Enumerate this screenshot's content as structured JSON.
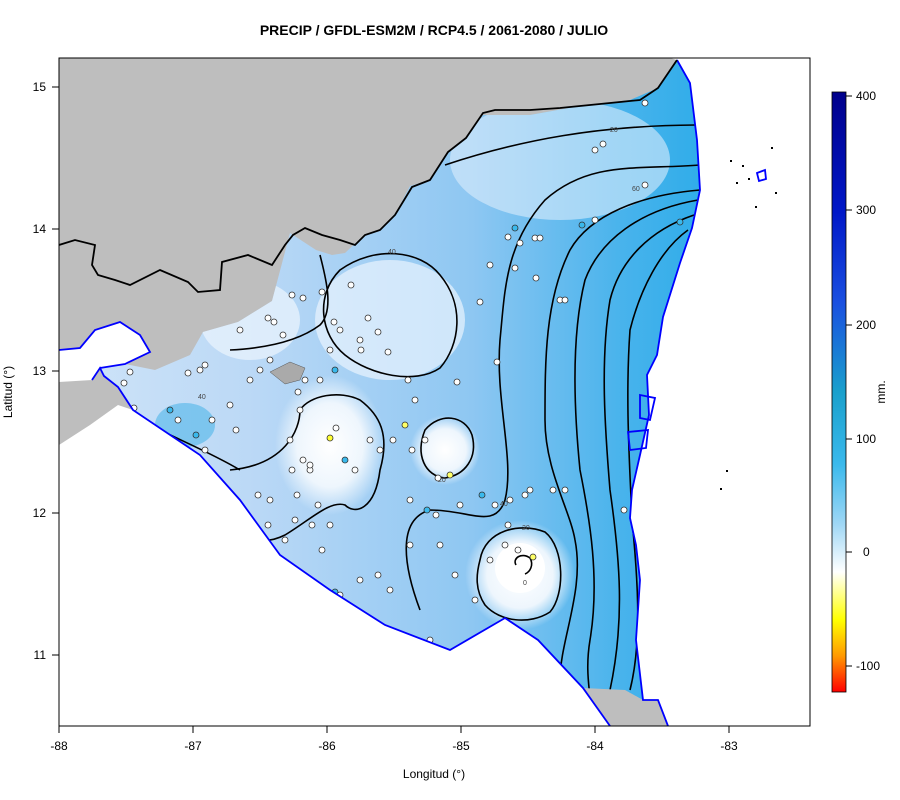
{
  "title": "PRECIP / GFDL-ESM2M / RCP4.5 / 2061-2080 / JULIO",
  "axes": {
    "xlabel": "Longitud (°)",
    "ylabel": "Latitud (°)",
    "x_ticks": [
      "-88",
      "-87",
      "-86",
      "-85",
      "-84",
      "-83"
    ],
    "y_ticks": [
      "11",
      "12",
      "13",
      "14",
      "15"
    ]
  },
  "colorbar": {
    "label": "mm.",
    "ticks": [
      "400",
      "300",
      "200",
      "100",
      "0",
      "-100"
    ]
  },
  "contour_labels": [
    "20",
    "40",
    "60",
    "0"
  ],
  "colors": {
    "land_outside": "#bebebe",
    "sea": "#ffffff",
    "coast": "#0000ff",
    "border": "#000000",
    "contour": "#000000"
  },
  "chart_data": {
    "type": "heatmap",
    "title": "PRECIP / GFDL-ESM2M / RCP4.5 / 2061-2080 / JULIO",
    "xlabel": "Longitud (°)",
    "ylabel": "Latitud (°)",
    "xlim": [
      -88,
      -82.4
    ],
    "ylim": [
      10.5,
      15.2
    ],
    "color_scale_range": [
      -120,
      400
    ],
    "contour_levels": [
      0,
      20,
      40,
      60,
      80,
      100
    ]
  }
}
